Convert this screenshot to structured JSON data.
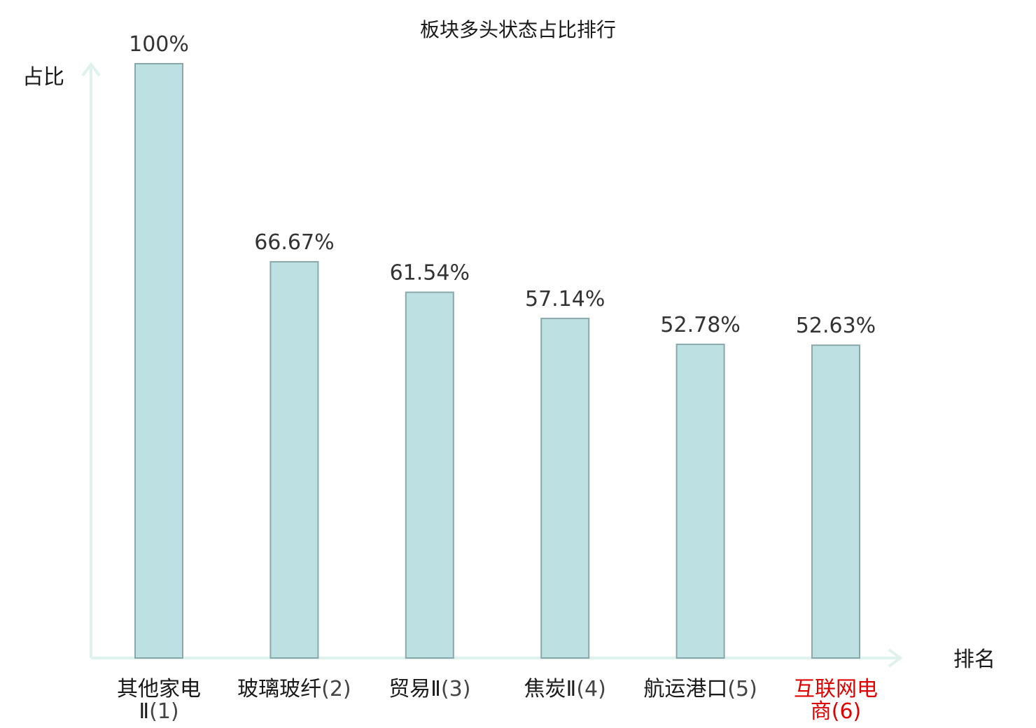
{
  "chart_data": {
    "type": "bar",
    "title": "板块多头状态占比排行",
    "ylabel": "占比",
    "xlabel": "排名",
    "ylim": [
      0,
      100
    ],
    "bar_color": "#bde0e3",
    "axis_color": "#dff2ee",
    "highlight_color": "#e00000",
    "categories": [
      {
        "name": [
          "其他家电",
          "Ⅱ"
        ],
        "rank": "(1)",
        "highlight": false
      },
      {
        "name": [
          "玻璃玻纤"
        ],
        "rank": "(2)",
        "highlight": false
      },
      {
        "name": [
          "贸易Ⅱ"
        ],
        "rank": "(3)",
        "highlight": false
      },
      {
        "name": [
          "焦炭Ⅱ"
        ],
        "rank": "(4)",
        "highlight": false
      },
      {
        "name": [
          "航运港口"
        ],
        "rank": "(5)",
        "highlight": false
      },
      {
        "name": [
          "互联网电",
          "商"
        ],
        "rank": "(6)",
        "highlight": true
      }
    ],
    "values": [
      100,
      66.67,
      61.54,
      57.14,
      52.78,
      52.63
    ],
    "value_labels": [
      "100%",
      "66.67%",
      "61.54%",
      "57.14%",
      "52.78%",
      "52.63%"
    ]
  }
}
